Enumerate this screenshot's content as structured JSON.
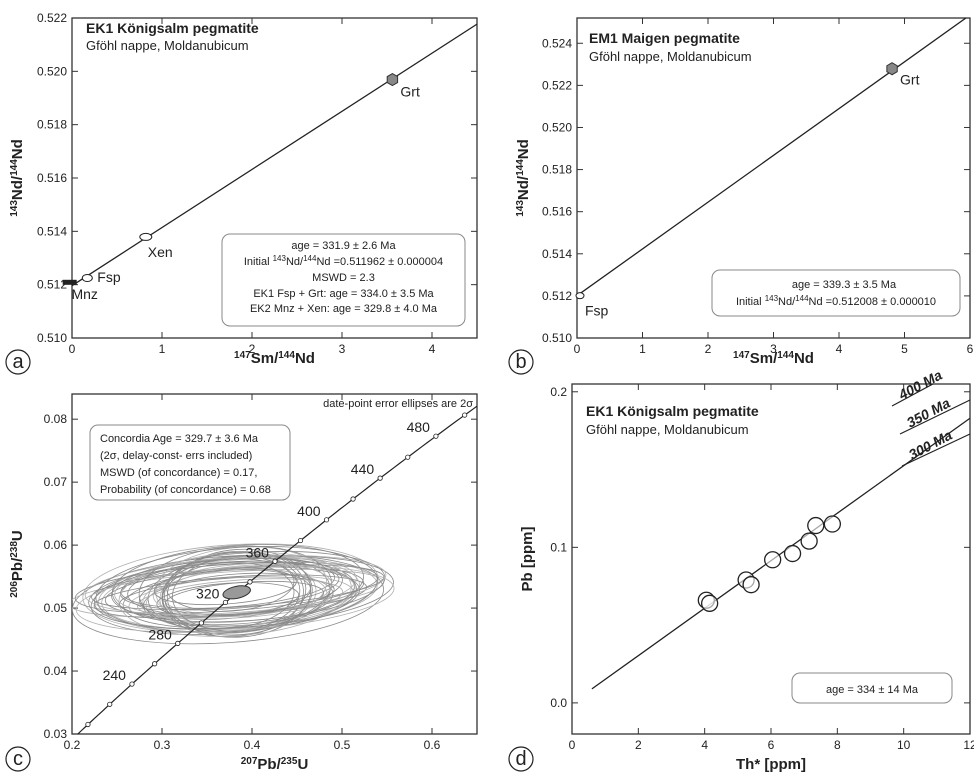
{
  "chart_data": [
    {
      "panel": "a",
      "type": "scatter",
      "title": "EK1 Königsalm pegmatite",
      "subtitle": "Gföhl nappe, Moldanubicum",
      "xlabel": "147Sm/144Nd",
      "ylabel": "143Nd/144Nd",
      "xlim": [
        0,
        4.5
      ],
      "ylim": [
        0.51,
        0.522
      ],
      "xticks": [
        0,
        1,
        2,
        3,
        4
      ],
      "yticks": [
        0.51,
        0.512,
        0.514,
        0.516,
        0.518,
        0.52,
        0.522
      ],
      "points": [
        {
          "label": "Mnz",
          "x": 0.03,
          "y": 0.51207
        },
        {
          "label": "Fsp",
          "x": 0.17,
          "y": 0.51225
        },
        {
          "label": "Xen",
          "x": 0.82,
          "y": 0.51379
        },
        {
          "label": "Grt",
          "x": 3.56,
          "y": 0.51969
        }
      ],
      "isochron": {
        "x": [
          0,
          4.5
        ],
        "y": [
          0.511962,
          0.52177
        ]
      },
      "annotations": [
        "age = 331.9 ± 2.6 Ma",
        "Initial 143Nd/144Nd =0.511962 ± 0.000004",
        "MSWD = 2.3",
        "EK1 Fsp + Grt: age = 334.0 ± 3.5 Ma",
        "EK2 Mnz + Xen: age = 329.8 ± 4.0 Ma"
      ]
    },
    {
      "panel": "b",
      "type": "scatter",
      "title": "EM1 Maigen pegmatite",
      "subtitle": "Gföhl nappe, Moldanubicum",
      "xlabel": "147Sm/144Nd",
      "ylabel": "143Nd/144Nd",
      "xlim": [
        0,
        6
      ],
      "ylim": [
        0.51,
        0.5252
      ],
      "xticks": [
        0,
        1,
        2,
        3,
        4,
        5,
        6
      ],
      "yticks": [
        0.51,
        0.512,
        0.514,
        0.516,
        0.518,
        0.52,
        0.522,
        0.524
      ],
      "points": [
        {
          "label": "Fsp",
          "x": 0.0,
          "y": 0.51201
        },
        {
          "label": "Grt",
          "x": 4.81,
          "y": 0.52279
        }
      ],
      "isochron": {
        "x": [
          0,
          6
        ],
        "y": [
          0.512008,
          0.52534
        ]
      },
      "annotations": [
        "age = 339.3 ± 3.5 Ma",
        "Initial 143Nd/144Nd =0.512008 ± 0.000010"
      ]
    },
    {
      "panel": "c",
      "type": "scatter",
      "xlabel": "207Pb/235U",
      "ylabel": "206Pb/238U",
      "xlim": [
        0.2,
        0.65
      ],
      "ylim": [
        0.03,
        0.084
      ],
      "xticks": [
        0.2,
        0.3,
        0.4,
        0.5,
        0.6
      ],
      "yticks": [
        0.03,
        0.04,
        0.05,
        0.06,
        0.07,
        0.08
      ],
      "concordia_labels": [
        240,
        280,
        320,
        360,
        400,
        440,
        480
      ],
      "concordia_point": {
        "x": 0.383,
        "y": 0.0525
      },
      "note": "date-point error ellipses are 2σ",
      "annotations": [
        "Concordia Age = 329.7 ± 3.6 Ma",
        "(2σ, delay-const- errs included)",
        "MSWD (of concordance) = 0.17,",
        "Probability (of concordance) = 0.68"
      ]
    },
    {
      "panel": "d",
      "type": "scatter",
      "title": "EK1 Königsalm pegmatite",
      "subtitle": "Gföhl nappe, Moldanubicum",
      "xlabel": "Th* [ppm]",
      "ylabel": "Pb [ppm]",
      "xlim": [
        0,
        12
      ],
      "ylim": [
        -0.02,
        0.205
      ],
      "xticks": [
        0,
        2,
        4,
        6,
        8,
        10,
        12
      ],
      "yticks": [
        0.0,
        0.1,
        0.2
      ],
      "points": [
        {
          "x": 4.05,
          "y": 0.066
        },
        {
          "x": 4.15,
          "y": 0.064
        },
        {
          "x": 5.25,
          "y": 0.079
        },
        {
          "x": 5.4,
          "y": 0.076
        },
        {
          "x": 6.05,
          "y": 0.092
        },
        {
          "x": 6.65,
          "y": 0.096
        },
        {
          "x": 7.15,
          "y": 0.104
        },
        {
          "x": 7.35,
          "y": 0.114
        },
        {
          "x": 7.85,
          "y": 0.115
        }
      ],
      "regression": {
        "x": [
          0.6,
          12
        ],
        "y": [
          0.009,
          0.183
        ]
      },
      "reference_lines": [
        "400 Ma",
        "350 Ma",
        "300 Ma"
      ],
      "annotations": [
        "age = 334 ± 14 Ma"
      ]
    }
  ],
  "panel_letters": [
    "a",
    "b",
    "c",
    "d"
  ]
}
